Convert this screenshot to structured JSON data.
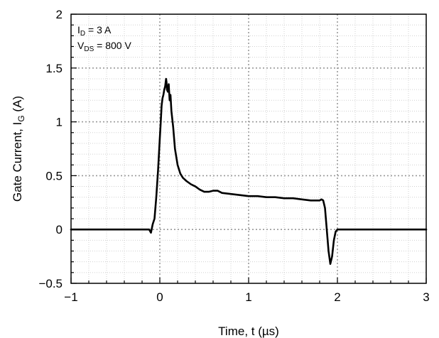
{
  "chart_data": {
    "type": "line",
    "title": "",
    "xlabel": "Time, t (µs)",
    "ylabel": "Gate Current, I_G (A)",
    "xlim": [
      -1,
      3
    ],
    "ylim": [
      -0.5,
      2
    ],
    "x_ticks": [
      "−1",
      "0",
      "1",
      "2",
      "3"
    ],
    "y_ticks": [
      "−0.5",
      "0",
      "0.5",
      "1",
      "1.5",
      "2"
    ],
    "grid": "dotted major and minor",
    "legend": "none",
    "annotation": {
      "line1": {
        "sym": "I",
        "sub": "D",
        "rest": " = 3 A"
      },
      "line2": {
        "sym": "V",
        "sub": "DS",
        "rest": " = 800 V"
      }
    },
    "series": [
      {
        "color": "#000000",
        "x": [
          -1,
          -0.8,
          -0.6,
          -0.4,
          -0.2,
          -0.12,
          -0.1,
          -0.08,
          -0.06,
          -0.04,
          -0.02,
          0,
          0.01,
          0.02,
          0.03,
          0.04,
          0.05,
          0.06,
          0.07,
          0.075,
          0.08,
          0.09,
          0.1,
          0.11,
          0.12,
          0.13,
          0.15,
          0.17,
          0.2,
          0.23,
          0.26,
          0.3,
          0.35,
          0.4,
          0.45,
          0.5,
          0.55,
          0.6,
          0.65,
          0.7,
          0.8,
          0.9,
          1.0,
          1.1,
          1.2,
          1.3,
          1.4,
          1.5,
          1.6,
          1.7,
          1.75,
          1.8,
          1.82,
          1.84,
          1.86,
          1.88,
          1.9,
          1.92,
          1.94,
          1.96,
          1.98,
          2.0,
          2.05,
          2.1,
          2.2,
          2.4,
          2.6,
          2.8,
          3.0
        ],
        "y": [
          0,
          0,
          0,
          0,
          0,
          0.0,
          -0.03,
          0.05,
          0.1,
          0.3,
          0.55,
          0.85,
          1.0,
          1.15,
          1.22,
          1.25,
          1.3,
          1.33,
          1.4,
          1.37,
          1.3,
          1.28,
          1.35,
          1.2,
          1.25,
          1.1,
          0.95,
          0.75,
          0.6,
          0.52,
          0.48,
          0.45,
          0.42,
          0.4,
          0.37,
          0.35,
          0.35,
          0.36,
          0.36,
          0.34,
          0.33,
          0.32,
          0.31,
          0.31,
          0.3,
          0.3,
          0.29,
          0.29,
          0.28,
          0.27,
          0.27,
          0.27,
          0.28,
          0.27,
          0.2,
          0.0,
          -0.2,
          -0.32,
          -0.25,
          -0.1,
          -0.02,
          0.0,
          0.0,
          0.0,
          0.0,
          0.0,
          0.0,
          0.0,
          0.0
        ]
      }
    ]
  }
}
